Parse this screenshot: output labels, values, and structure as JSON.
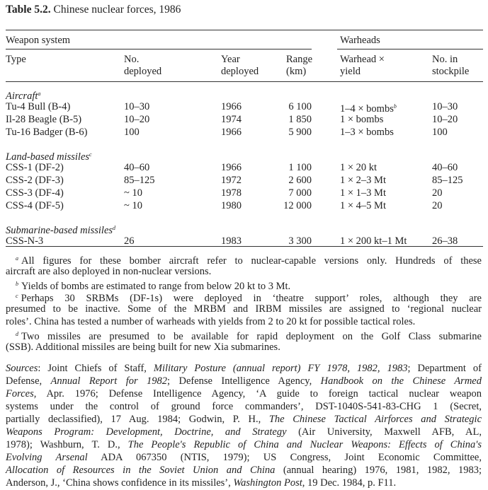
{
  "title": {
    "label": "Table 5.2.",
    "text": "Chinese nuclear forces, 1986"
  },
  "header": {
    "group1": "Weapon system",
    "group2": "Warheads",
    "columns": [
      [
        "Type",
        ""
      ],
      [
        "No.",
        "deployed"
      ],
      [
        "Year",
        "deployed"
      ],
      [
        "Range",
        "(km)"
      ],
      [
        "Warhead ×",
        "yield"
      ],
      [
        "No. in",
        "stockpile"
      ]
    ]
  },
  "sections": [
    {
      "name": "Aircraft",
      "note": "a",
      "rows": [
        [
          "Tu-4 Bull (B-4)",
          "10–30",
          "1966",
          "6 100",
          "1–4 × bombs",
          "10–30",
          "b"
        ],
        [
          "Il-28 Beagle (B-5)",
          "10–20",
          "1974",
          "1 850",
          "1 × bombs",
          "10–20",
          ""
        ],
        [
          "Tu-16 Badger (B-6)",
          "100",
          "1966",
          "5 900",
          "1–3 × bombs",
          "100",
          ""
        ]
      ]
    },
    {
      "name": "Land-based missiles",
      "note": "c",
      "rows": [
        [
          "CSS-1 (DF-2)",
          "40–60",
          "1966",
          "1 100",
          "1 × 20 kt",
          "40–60",
          ""
        ],
        [
          "CSS-2 (DF-3)",
          "85–125",
          "1972",
          "2 600",
          "1 × 2–3 Mt",
          "85–125",
          ""
        ],
        [
          "CSS-3 (DF-4)",
          "~ 10",
          "1978",
          "7 000",
          "1 × 1–3 Mt",
          "20",
          ""
        ],
        [
          "CSS-4 (DF-5)",
          "~ 10",
          "1980",
          "12 000",
          "1 × 4–5 Mt",
          "20",
          ""
        ]
      ]
    },
    {
      "name": "Submarine-based missiles",
      "note": "d",
      "rows": [
        [
          "CSS-N-3",
          "26",
          "1983",
          "3 300",
          "1 × 200 kt–1 Mt",
          "26–38",
          ""
        ]
      ]
    }
  ],
  "footnotes": [
    {
      "mark": "a",
      "lines": [
        "All figures for these bomber aircraft refer to nuclear-capable versions only. Hundreds of these",
        "aircraft are also deployed in non-nuclear versions."
      ]
    },
    {
      "mark": "b",
      "lines": [
        "Yields of bombs are estimated to range from below 20 kt to 3 Mt."
      ]
    },
    {
      "mark": "c",
      "lines": [
        "Perhaps 30 SRBMs (DF-1s) were deployed in ‘theatre support’ roles, although they are",
        "presumed to be inactive. Some of the MRBM and IRBM missiles are assigned to ‘regional nuclear",
        "roles’. China has tested a number of warheads with yields from 2 to 20 kt for possible tactical roles."
      ]
    },
    {
      "mark": "d",
      "lines": [
        "Two missiles are presumed to be available for rapid deployment on the Golf Class submarine",
        "(SSB). Additional missiles are being built for new Xia submarines."
      ]
    }
  ],
  "sources": [
    [
      {
        "t": "Sources",
        "i": true
      },
      {
        "t": ": Joint Chiefs of Staff, "
      },
      {
        "t": "Military Posture (annual report) FY 1978, 1982, 1983",
        "i": true
      },
      {
        "t": "; Department of"
      }
    ],
    [
      {
        "t": "Defense, "
      },
      {
        "t": "Annual Report for 1982",
        "i": true
      },
      {
        "t": "; Defense Intelligence Agency, "
      },
      {
        "t": "Handbook on the Chinese Armed",
        "i": true
      }
    ],
    [
      {
        "t": "Forces",
        "i": true
      },
      {
        "t": ", Apr. 1976; Defense Intelligence Agency, ‘A guide to foreign tactical nuclear weapon"
      }
    ],
    [
      {
        "t": "systems under the control of ground force commanders’, DST-1040S-541-83-CHG 1 (Secret,"
      }
    ],
    [
      {
        "t": "partially declassified), 17 Aug. 1984; Godwin, P. H., "
      },
      {
        "t": "The Chinese Tactical Airforces and Strategic",
        "i": true
      }
    ],
    [
      {
        "t": "Weapons Program: Development, Doctrine, and Strategy",
        "i": true
      },
      {
        "t": " (Air University, Maxwell AFB, AL,"
      }
    ],
    [
      {
        "t": "1978); Washburn, T. D., "
      },
      {
        "t": "The People's Republic of China and Nuclear Weapons: Effects of China's",
        "i": true
      }
    ],
    [
      {
        "t": "Evolving Arsenal",
        "i": true
      },
      {
        "t": " ADA 067350 (NTIS, 1979); US Congress, Joint Economic Committee,"
      }
    ],
    [
      {
        "t": "Allocation of Resources in the Soviet Union and China",
        "i": true
      },
      {
        "t": " (annual hearing) 1976, 1981, 1982, 1983;"
      }
    ],
    [
      {
        "t": "Anderson, J., ‘China shows confidence in its missiles’, "
      },
      {
        "t": "Washington Post",
        "i": true
      },
      {
        "t": ", 19 Dec. 1984, p. F11."
      }
    ]
  ]
}
